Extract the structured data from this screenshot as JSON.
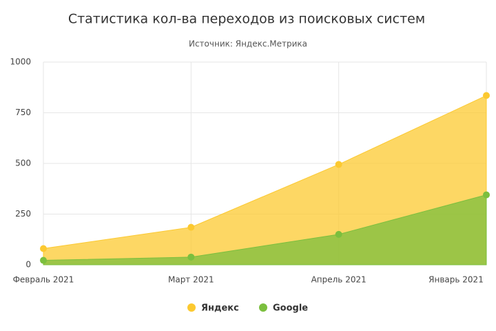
{
  "chart_data": {
    "type": "area",
    "title": "Статистика кол-ва переходов из поисковых систем",
    "subtitle": "Источник: Яндекс.Метрика",
    "categories": [
      "Февраль 2021",
      "Март 2021",
      "Апрель 2021",
      "Январь 2021"
    ],
    "series": [
      {
        "name": "Яндекс",
        "color": "#fcc930",
        "values": [
          80,
          185,
          495,
          835
        ]
      },
      {
        "name": "Google",
        "color": "#7bbf3e",
        "values": [
          22,
          38,
          150,
          345
        ]
      }
    ],
    "ylim": [
      0,
      1000
    ],
    "yticks": [
      0,
      250,
      500,
      750,
      1000
    ],
    "grid": true
  }
}
